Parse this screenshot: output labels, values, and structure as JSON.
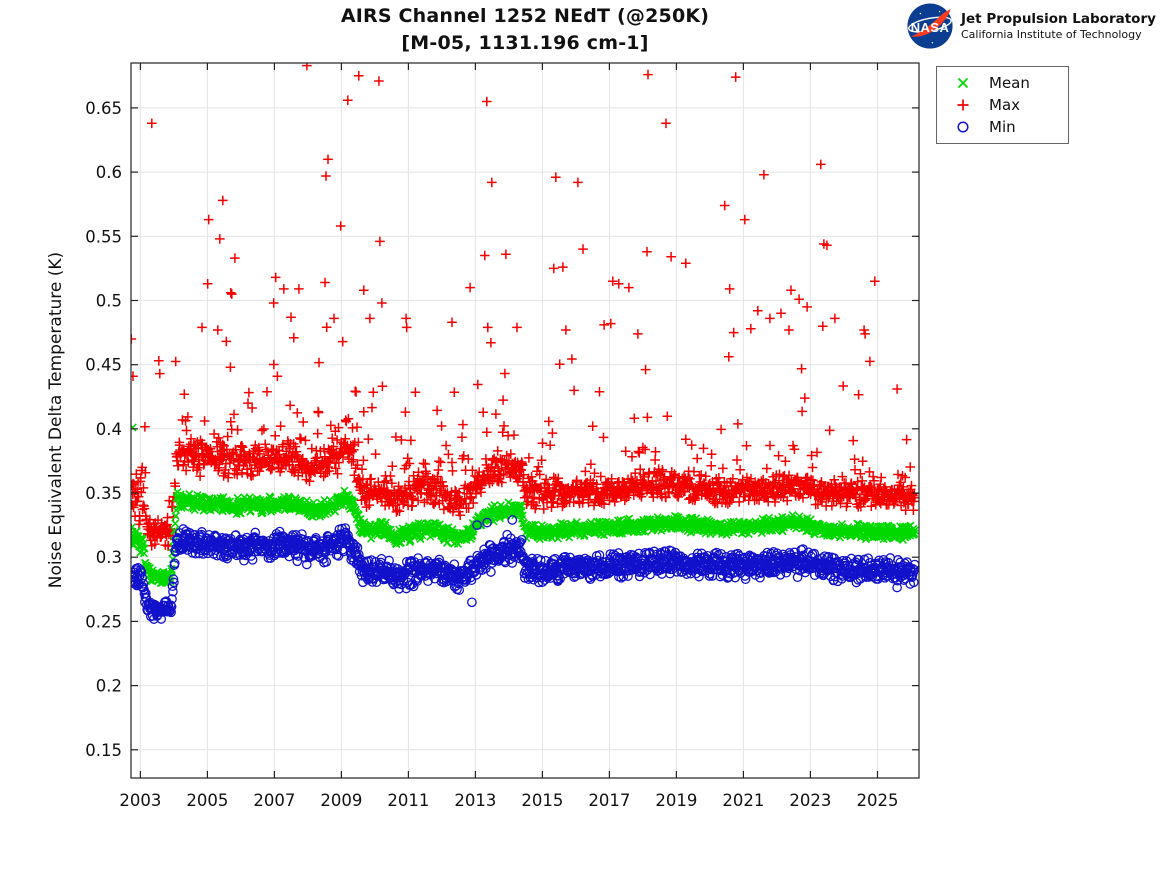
{
  "header": {
    "title_line1": "AIRS Channel 1252 NEdT (@250K)",
    "title_line2": "[M-05, 1131.196 cm-1]",
    "logo": {
      "text": "NASA",
      "org_name": "Jet Propulsion Laboratory",
      "org_sub": "California Institute of Technology",
      "nasa_blue": "#0B3D91",
      "nasa_red": "#FC3D21"
    }
  },
  "chart_data": {
    "type": "scatter",
    "title": "AIRS Channel 1252 NEdT (@250K)",
    "subtitle": "[M-05, 1131.196 cm-1]",
    "xlabel": "",
    "ylabel": "Noise Equivalent Delta Temperature (K)",
    "xlim": [
      2002.72,
      2026.24
    ],
    "ylim": [
      0.128,
      0.685
    ],
    "xticks": [
      2003,
      2005,
      2007,
      2009,
      2011,
      2013,
      2015,
      2017,
      2019,
      2021,
      2023,
      2025
    ],
    "yticks": [
      [
        0.15,
        "0.15"
      ],
      [
        0.2,
        "0.2"
      ],
      [
        0.25,
        "0.25"
      ],
      [
        0.3,
        "0.3"
      ],
      [
        0.35,
        "0.35"
      ],
      [
        0.4,
        "0.4"
      ],
      [
        0.45,
        "0.45"
      ],
      [
        0.5,
        "0.5"
      ],
      [
        0.55,
        "0.55"
      ],
      [
        0.6,
        "0.6"
      ],
      [
        0.65,
        "0.65"
      ]
    ],
    "grid": true,
    "legend_position": "outside-top-right",
    "legend_order": [
      "mean",
      "max",
      "min"
    ],
    "style": {
      "grid_color": "#E4E4E4",
      "axis_color": "#222222",
      "tick_len": 7
    },
    "generation": {
      "seed": 7,
      "t_start": 2002.73,
      "t_end": 2026.12,
      "dt": 0.0135
    },
    "series": [
      {
        "key": "max",
        "label": "Max",
        "marker": "plus",
        "color": "#F40000",
        "center": [
          [
            2002.72,
            0.35
          ],
          [
            2003.05,
            0.345
          ],
          [
            2003.12,
            0.332
          ],
          [
            2003.2,
            0.322
          ],
          [
            2003.5,
            0.318
          ],
          [
            2003.93,
            0.32
          ],
          [
            2004.08,
            0.38
          ],
          [
            2004.5,
            0.379
          ],
          [
            2005,
            0.377
          ],
          [
            2006,
            0.375
          ],
          [
            2007,
            0.376
          ],
          [
            2007.5,
            0.377
          ],
          [
            2008,
            0.372
          ],
          [
            2008.5,
            0.373
          ],
          [
            2008.9,
            0.377
          ],
          [
            2009.15,
            0.388
          ],
          [
            2009.35,
            0.378
          ],
          [
            2009.6,
            0.352
          ],
          [
            2009.9,
            0.35
          ],
          [
            2010.2,
            0.353
          ],
          [
            2010.6,
            0.345
          ],
          [
            2011,
            0.348
          ],
          [
            2011.4,
            0.351
          ],
          [
            2011.8,
            0.352
          ],
          [
            2012.2,
            0.347
          ],
          [
            2012.6,
            0.345
          ],
          [
            2012.9,
            0.35
          ],
          [
            2013.2,
            0.362
          ],
          [
            2013.5,
            0.366
          ],
          [
            2013.8,
            0.368
          ],
          [
            2014.1,
            0.369
          ],
          [
            2014.38,
            0.368
          ],
          [
            2014.48,
            0.351
          ],
          [
            2015,
            0.35
          ],
          [
            2016,
            0.351
          ],
          [
            2017,
            0.352
          ],
          [
            2018,
            0.354
          ],
          [
            2018.5,
            0.356
          ],
          [
            2019,
            0.355
          ],
          [
            2019.5,
            0.354
          ],
          [
            2020,
            0.352
          ],
          [
            2020.5,
            0.351
          ],
          [
            2021,
            0.352
          ],
          [
            2021.5,
            0.353
          ],
          [
            2022,
            0.354
          ],
          [
            2022.5,
            0.356
          ],
          [
            2022.8,
            0.355
          ],
          [
            2023.2,
            0.351
          ],
          [
            2023.6,
            0.35
          ],
          [
            2024,
            0.349
          ],
          [
            2025,
            0.348
          ],
          [
            2026.12,
            0.347
          ]
        ],
        "spread": [
          [
            2002.72,
            0.03
          ],
          [
            2003.05,
            0.028
          ],
          [
            2003.2,
            0.013
          ],
          [
            2003.93,
            0.013
          ],
          [
            2004.1,
            0.015
          ],
          [
            2009.4,
            0.015
          ],
          [
            2009.6,
            0.013
          ],
          [
            2014.5,
            0.013
          ],
          [
            2026.2,
            0.012
          ]
        ],
        "tail": {
          "dir": "up",
          "scale": 0.03,
          "cap": 0.105,
          "prob": [
            [
              2002.72,
              0.1
            ],
            [
              2003.9,
              0.08
            ],
            [
              2004.1,
              0.17
            ],
            [
              2009.4,
              0.2
            ],
            [
              2009.6,
              0.25
            ],
            [
              2014.35,
              0.25
            ],
            [
              2014.5,
              0.13
            ],
            [
              2019.9,
              0.13
            ],
            [
              2020.1,
              0.15
            ],
            [
              2026.2,
              0.15
            ]
          ]
        },
        "extra_points": [
          [
            2002.73,
            0.47
          ],
          [
            2002.78,
            0.441
          ],
          [
            2003.34,
            0.638
          ],
          [
            2003.55,
            0.453
          ],
          [
            2003.58,
            0.443
          ],
          [
            2004.84,
            0.479
          ],
          [
            2005.01,
            0.513
          ],
          [
            2005.04,
            0.563
          ],
          [
            2005.31,
            0.477
          ],
          [
            2005.37,
            0.548
          ],
          [
            2005.46,
            0.578
          ],
          [
            2005.7,
            0.506
          ],
          [
            2005.73,
            0.505
          ],
          [
            2005.82,
            0.533
          ],
          [
            2006.98,
            0.498
          ],
          [
            2007.04,
            0.518
          ],
          [
            2007.28,
            0.509
          ],
          [
            2007.58,
            0.471
          ],
          [
            2007.73,
            0.509
          ],
          [
            2007.97,
            0.683
          ],
          [
            2008.51,
            0.514
          ],
          [
            2008.54,
            0.597
          ],
          [
            2008.6,
            0.61
          ],
          [
            2008.78,
            0.486
          ],
          [
            2008.98,
            0.558
          ],
          [
            2009.04,
            0.468
          ],
          [
            2009.19,
            0.656
          ],
          [
            2009.52,
            0.675
          ],
          [
            2009.67,
            0.508
          ],
          [
            2009.85,
            0.486
          ],
          [
            2010.12,
            0.671
          ],
          [
            2010.15,
            0.546
          ],
          [
            2010.21,
            0.498
          ],
          [
            2010.93,
            0.486
          ],
          [
            2010.95,
            0.479
          ],
          [
            2012.3,
            0.483
          ],
          [
            2012.84,
            0.51
          ],
          [
            2013.28,
            0.535
          ],
          [
            2013.34,
            0.655
          ],
          [
            2013.37,
            0.479
          ],
          [
            2013.49,
            0.592
          ],
          [
            2013.91,
            0.536
          ],
          [
            2014.24,
            0.479
          ],
          [
            2015.34,
            0.525
          ],
          [
            2015.4,
            0.596
          ],
          [
            2015.61,
            0.526
          ],
          [
            2015.7,
            0.477
          ],
          [
            2016.06,
            0.592
          ],
          [
            2016.21,
            0.54
          ],
          [
            2016.84,
            0.481
          ],
          [
            2017.04,
            0.482
          ],
          [
            2017.1,
            0.515
          ],
          [
            2017.28,
            0.513
          ],
          [
            2017.58,
            0.51
          ],
          [
            2017.85,
            0.474
          ],
          [
            2018.12,
            0.538
          ],
          [
            2018.15,
            0.676
          ],
          [
            2018.69,
            0.638
          ],
          [
            2018.84,
            0.534
          ],
          [
            2019.28,
            0.529
          ],
          [
            2020.44,
            0.574
          ],
          [
            2020.59,
            0.509
          ],
          [
            2020.71,
            0.475
          ],
          [
            2020.77,
            0.674
          ],
          [
            2021.04,
            0.563
          ],
          [
            2021.22,
            0.478
          ],
          [
            2021.43,
            0.492
          ],
          [
            2021.61,
            0.598
          ],
          [
            2021.79,
            0.486
          ],
          [
            2022.12,
            0.49
          ],
          [
            2022.36,
            0.477
          ],
          [
            2022.42,
            0.508
          ],
          [
            2022.66,
            0.501
          ],
          [
            2022.9,
            0.495
          ],
          [
            2023.31,
            0.606
          ],
          [
            2023.37,
            0.48
          ],
          [
            2023.4,
            0.544
          ],
          [
            2023.49,
            0.543
          ],
          [
            2023.73,
            0.486
          ],
          [
            2024.6,
            0.477
          ],
          [
            2024.63,
            0.474
          ],
          [
            2024.92,
            0.515
          ]
        ]
      },
      {
        "key": "mean",
        "label": "Mean",
        "marker": "cross",
        "color": "#00D800",
        "center": [
          [
            2002.72,
            0.316
          ],
          [
            2003.05,
            0.312
          ],
          [
            2003.12,
            0.3
          ],
          [
            2003.2,
            0.288
          ],
          [
            2003.5,
            0.284
          ],
          [
            2003.93,
            0.286
          ],
          [
            2004.08,
            0.345
          ],
          [
            2004.5,
            0.344
          ],
          [
            2005,
            0.342
          ],
          [
            2006,
            0.34
          ],
          [
            2007,
            0.341
          ],
          [
            2007.5,
            0.342
          ],
          [
            2008,
            0.337
          ],
          [
            2008.5,
            0.338
          ],
          [
            2008.9,
            0.342
          ],
          [
            2009.15,
            0.348
          ],
          [
            2009.35,
            0.34
          ],
          [
            2009.6,
            0.322
          ],
          [
            2009.9,
            0.32
          ],
          [
            2010.2,
            0.323
          ],
          [
            2010.6,
            0.315
          ],
          [
            2011,
            0.318
          ],
          [
            2011.4,
            0.321
          ],
          [
            2011.8,
            0.322
          ],
          [
            2012.2,
            0.317
          ],
          [
            2012.6,
            0.315
          ],
          [
            2012.9,
            0.32
          ],
          [
            2013.2,
            0.33
          ],
          [
            2013.5,
            0.334
          ],
          [
            2013.8,
            0.336
          ],
          [
            2014.1,
            0.337
          ],
          [
            2014.38,
            0.336
          ],
          [
            2014.48,
            0.321
          ],
          [
            2015,
            0.32
          ],
          [
            2016,
            0.322
          ],
          [
            2017,
            0.323
          ],
          [
            2018,
            0.325
          ],
          [
            2018.5,
            0.327
          ],
          [
            2019,
            0.326
          ],
          [
            2019.5,
            0.325
          ],
          [
            2020,
            0.324
          ],
          [
            2020.5,
            0.322
          ],
          [
            2021,
            0.324
          ],
          [
            2021.5,
            0.324
          ],
          [
            2022,
            0.325
          ],
          [
            2022.5,
            0.328
          ],
          [
            2022.8,
            0.326
          ],
          [
            2023.2,
            0.322
          ],
          [
            2023.6,
            0.321
          ],
          [
            2024,
            0.32
          ],
          [
            2025,
            0.32
          ],
          [
            2026.12,
            0.318
          ]
        ],
        "spread": [
          [
            2002.72,
            0.013
          ],
          [
            2003.1,
            0.009
          ],
          [
            2003.93,
            0.007
          ],
          [
            2004.1,
            0.0075
          ],
          [
            2026.2,
            0.0065
          ]
        ],
        "extra_points": [
          [
            2002.77,
            0.401
          ]
        ]
      },
      {
        "key": "min",
        "label": "Min",
        "marker": "circle",
        "color": "#1111CC",
        "center": [
          [
            2002.72,
            0.287
          ],
          [
            2003.05,
            0.283
          ],
          [
            2003.12,
            0.272
          ],
          [
            2003.2,
            0.262
          ],
          [
            2003.5,
            0.258
          ],
          [
            2003.93,
            0.26
          ],
          [
            2004.08,
            0.313
          ],
          [
            2004.5,
            0.312
          ],
          [
            2005,
            0.311
          ],
          [
            2006,
            0.308
          ],
          [
            2007,
            0.309
          ],
          [
            2007.5,
            0.31
          ],
          [
            2008,
            0.305
          ],
          [
            2008.5,
            0.306
          ],
          [
            2008.9,
            0.31
          ],
          [
            2009.15,
            0.315
          ],
          [
            2009.35,
            0.307
          ],
          [
            2009.6,
            0.291
          ],
          [
            2009.9,
            0.289
          ],
          [
            2010.2,
            0.292
          ],
          [
            2010.6,
            0.284
          ],
          [
            2011,
            0.287
          ],
          [
            2011.4,
            0.29
          ],
          [
            2011.8,
            0.291
          ],
          [
            2012.2,
            0.286
          ],
          [
            2012.6,
            0.284
          ],
          [
            2012.9,
            0.289
          ],
          [
            2013.2,
            0.299
          ],
          [
            2013.5,
            0.303
          ],
          [
            2013.8,
            0.306
          ],
          [
            2014.1,
            0.307
          ],
          [
            2014.38,
            0.306
          ],
          [
            2014.48,
            0.291
          ],
          [
            2015,
            0.29
          ],
          [
            2016,
            0.292
          ],
          [
            2017,
            0.293
          ],
          [
            2018,
            0.295
          ],
          [
            2018.5,
            0.297
          ],
          [
            2019,
            0.296
          ],
          [
            2019.5,
            0.295
          ],
          [
            2020,
            0.294
          ],
          [
            2020.5,
            0.292
          ],
          [
            2021,
            0.294
          ],
          [
            2021.5,
            0.294
          ],
          [
            2022,
            0.295
          ],
          [
            2022.5,
            0.298
          ],
          [
            2022.8,
            0.296
          ],
          [
            2023.2,
            0.292
          ],
          [
            2023.6,
            0.291
          ],
          [
            2024,
            0.29
          ],
          [
            2025,
            0.29
          ],
          [
            2026.12,
            0.288
          ]
        ],
        "spread": [
          [
            2002.72,
            0.011
          ],
          [
            2003.1,
            0.009
          ],
          [
            2003.93,
            0.008
          ],
          [
            2004.1,
            0.012
          ],
          [
            2026.2,
            0.011
          ]
        ],
        "tail": {
          "dir": "down",
          "scale": 0.009,
          "cap": 0.016,
          "prob": [
            [
              2002.72,
              0.012
            ],
            [
              2026.2,
              0.012
            ]
          ]
        },
        "extra_points": [
          [
            2013.05,
            0.325
          ],
          [
            2013.35,
            0.327
          ],
          [
            2014.1,
            0.329
          ]
        ]
      }
    ]
  }
}
